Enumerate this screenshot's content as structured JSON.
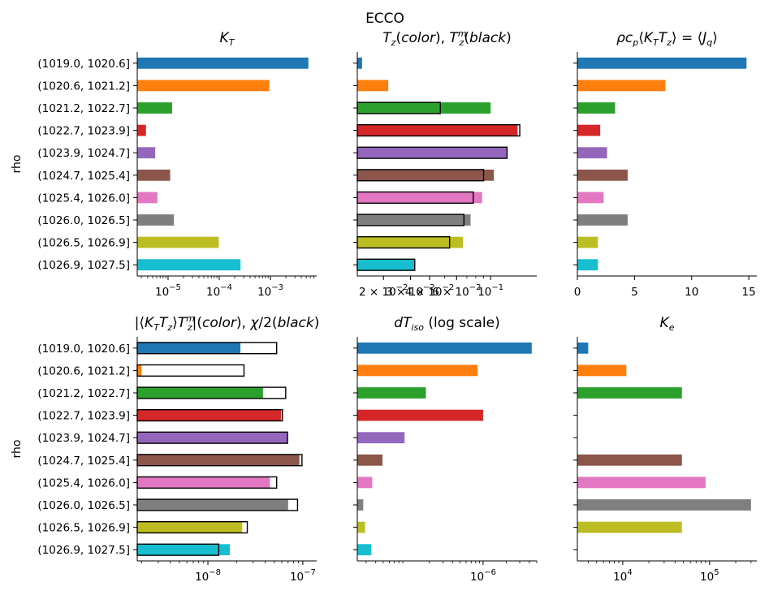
{
  "suptitle": "ECCO",
  "colors": [
    "#1f77b4",
    "#ff7f0e",
    "#2ca02c",
    "#d62728",
    "#9467bd",
    "#8c564b",
    "#e377c2",
    "#7f7f7f",
    "#bcbd22",
    "#17becf"
  ],
  "categories": [
    "(1019.0, 1020.6]",
    "(1020.6, 1021.2]",
    "(1021.2, 1022.7]",
    "(1022.7, 1023.9]",
    "(1023.9, 1024.7]",
    "(1024.7, 1025.4]",
    "(1025.4, 1026.0]",
    "(1026.0, 1026.5]",
    "(1026.5, 1026.9]",
    "(1026.9, 1027.5]"
  ],
  "chart_data": [
    {
      "type": "bar",
      "orientation": "horizontal",
      "title": "K_T",
      "ylabel": "rho",
      "xscale": "log",
      "xlim": [
        2.5e-06,
        0.008
      ],
      "xticks": [
        {
          "value": 1e-05,
          "base": "10",
          "exp": "−5"
        },
        {
          "value": 0.0001,
          "base": "10",
          "exp": "−4"
        },
        {
          "value": 0.001,
          "base": "10",
          "exp": "−3"
        }
      ],
      "values": [
        0.0055,
        0.00095,
        1.2e-05,
        3.7e-06,
        5.6e-06,
        1.1e-05,
        6.2e-06,
        1.3e-05,
        9.8e-05,
        0.00026
      ]
    },
    {
      "type": "bar",
      "orientation": "horizontal",
      "title": "T_z(color), T_z^m(black)",
      "xscale": "log",
      "xlim": [
        0.0135,
        0.2
      ],
      "xticks": [
        {
          "value": 0.02,
          "base": "2 × 10",
          "exp": "−2"
        },
        {
          "value": 0.03,
          "base": "3 × 10",
          "exp": "−2"
        },
        {
          "value": 0.04,
          "base": "4 × 10",
          "exp": "−2"
        },
        {
          "value": 0.06,
          "base": "6 × 10",
          "exp": "−2"
        },
        {
          "value": 0.1,
          "base": "10",
          "exp": "−1"
        }
      ],
      "series": [
        {
          "name": "T_z",
          "values": [
            0.0145,
            0.0215,
            0.1,
            0.15,
            0.128,
            0.105,
            0.088,
            0.074,
            0.066,
            0.032
          ]
        },
        {
          "name": "T_z^m",
          "values": [
            null,
            null,
            0.047,
            0.155,
            0.128,
            0.09,
            0.077,
            0.067,
            0.054,
            0.032
          ]
        }
      ]
    },
    {
      "type": "bar",
      "orientation": "horizontal",
      "title": "ρc_p⟨K_T T_z⟩ = ⟨J_q⟩",
      "xscale": "linear",
      "xlim": [
        0,
        15.7
      ],
      "xticks": [
        {
          "value": 0,
          "label": "0"
        },
        {
          "value": 5,
          "label": "5"
        },
        {
          "value": 10,
          "label": "10"
        },
        {
          "value": 15,
          "label": "15"
        }
      ],
      "values": [
        14.8,
        7.7,
        3.3,
        2.0,
        2.6,
        4.4,
        2.3,
        4.4,
        1.8,
        1.8
      ]
    },
    {
      "type": "bar",
      "orientation": "horizontal",
      "title": "|⟨K_T T_z⟩ T_z^m|(color), χ/2(black)",
      "ylabel": "rho",
      "xscale": "log",
      "xlim": [
        1.8e-09,
        1.4e-07
      ],
      "xticks": [
        {
          "value": 1e-08,
          "base": "10",
          "exp": "−8"
        },
        {
          "value": 1e-07,
          "base": "10",
          "exp": "−7"
        }
      ],
      "series": [
        {
          "name": "|⟨K_T T_z⟩ T_z^m|",
          "values": [
            2.2e-08,
            2e-09,
            3.8e-08,
            5.9e-08,
            6.9e-08,
            9.2e-08,
            4.5e-08,
            7e-08,
            2.3e-08,
            1.7e-08
          ]
        },
        {
          "name": "χ/2",
          "values": [
            5.3e-08,
            2.4e-08,
            6.6e-08,
            6.1e-08,
            6.9e-08,
            9.8e-08,
            5.3e-08,
            8.8e-08,
            2.6e-08,
            1.3e-08
          ]
        }
      ]
    },
    {
      "type": "bar",
      "orientation": "horizontal",
      "title": "dT_iso (log scale)",
      "xscale": "log",
      "xlim": [
        2.3e-08,
        5e-06
      ],
      "xticks": [
        {
          "value": 1e-06,
          "base": "10",
          "exp": "−6"
        }
      ],
      "values": [
        4.3e-06,
        8.5e-07,
        1.8e-07,
        1e-06,
        9.5e-08,
        4.9e-08,
        3.6e-08,
        2.75e-08,
        2.9e-08,
        3.5e-08
      ]
    },
    {
      "type": "bar",
      "orientation": "horizontal",
      "title": "K_e",
      "xscale": "log",
      "xlim": [
        3000,
        350000
      ],
      "xticks": [
        {
          "value": 10000,
          "base": "10",
          "exp": "4"
        },
        {
          "value": 100000,
          "base": "10",
          "exp": "5"
        }
      ],
      "values": [
        4000,
        11000,
        48000,
        null,
        null,
        48000,
        90000,
        300000,
        48000,
        null
      ]
    }
  ]
}
